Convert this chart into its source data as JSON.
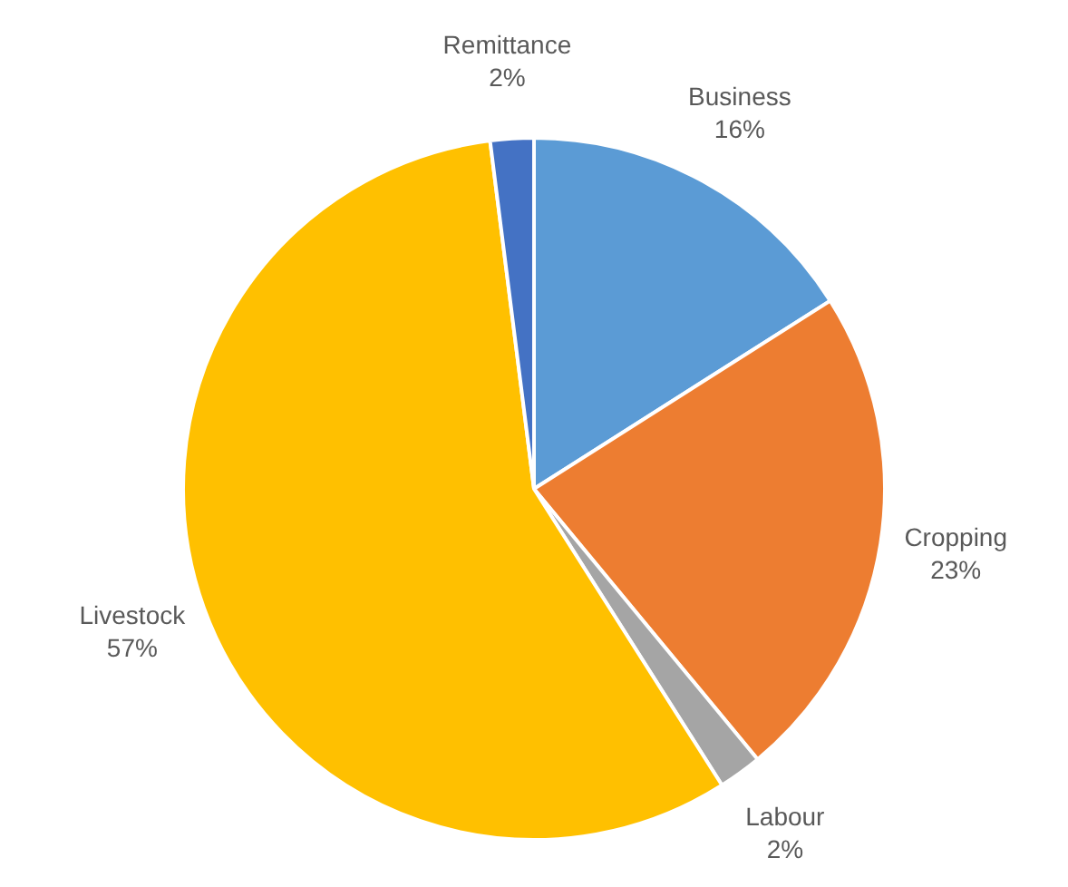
{
  "chart_data": {
    "type": "pie",
    "categories": [
      "Business",
      "Cropping",
      "Labour",
      "Livestock",
      "Remittance"
    ],
    "values": [
      16,
      23,
      2,
      57,
      2
    ],
    "colors": [
      "#5b9bd5",
      "#ed7d31",
      "#a5a5a5",
      "#ffc000",
      "#4472c4"
    ],
    "value_labels": [
      "16%",
      "23%",
      "2%",
      "57%",
      "2%"
    ],
    "legend": false
  }
}
